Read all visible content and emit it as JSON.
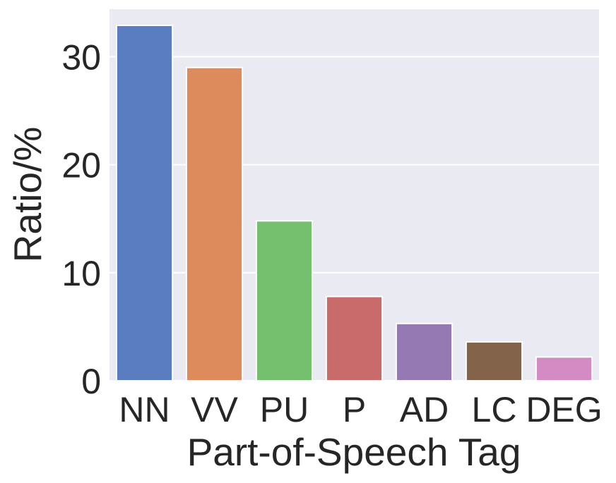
{
  "chart_data": {
    "type": "bar",
    "title": "",
    "xlabel": "Part-of-Speech Tag",
    "ylabel": "Ratio/%",
    "categories": [
      "NN",
      "VV",
      "PU",
      "P",
      "AD",
      "LC",
      "DEG"
    ],
    "values": [
      32.9,
      29.0,
      14.8,
      7.8,
      5.3,
      3.6,
      2.2
    ],
    "colors": [
      "#5a7dc2",
      "#dd8a5d",
      "#74c06f",
      "#c96b6b",
      "#9479b2",
      "#83644a",
      "#d48bc4"
    ],
    "ylim": [
      0,
      34.4
    ],
    "yticks": [
      0,
      10,
      20,
      30
    ],
    "grid": true,
    "background": "#eaeaf2"
  }
}
